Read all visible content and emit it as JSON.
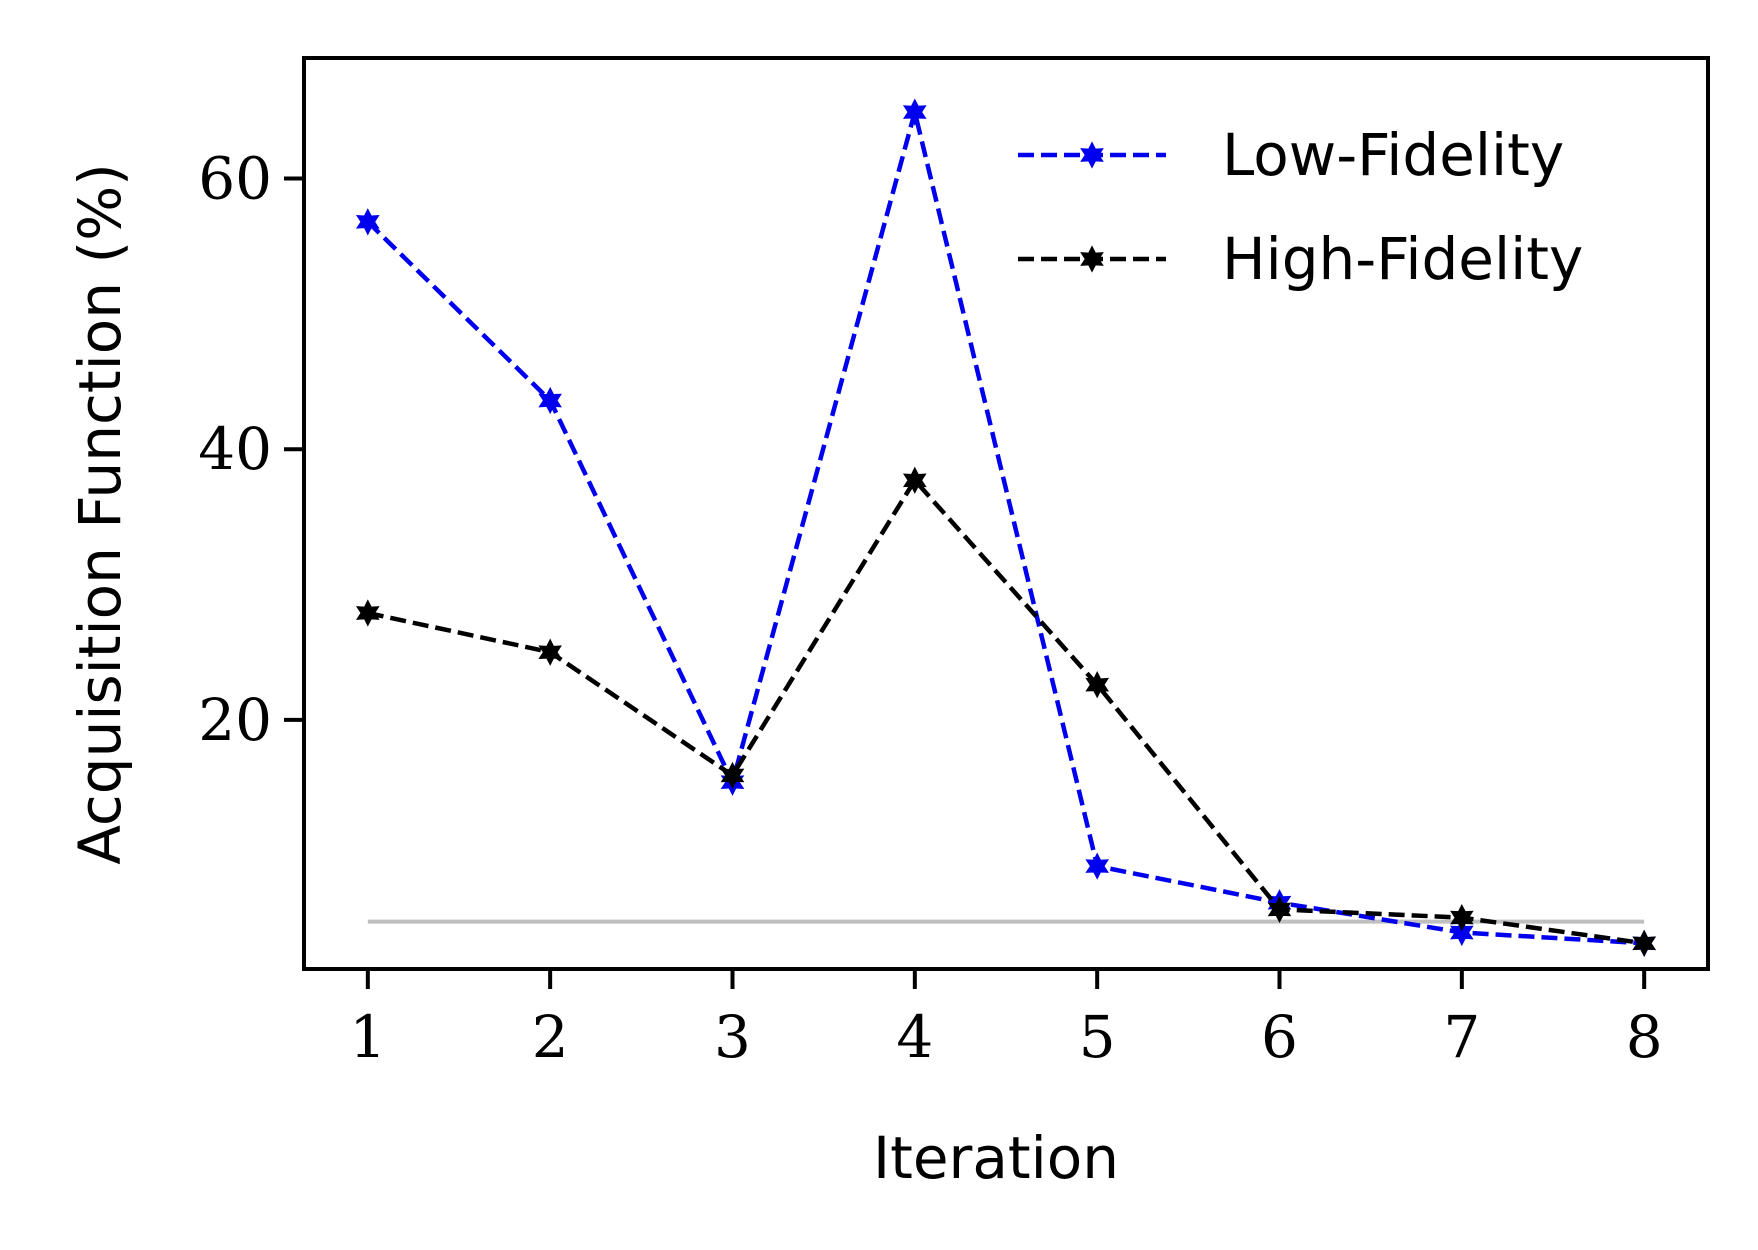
{
  "chart_data": {
    "type": "line",
    "title": "",
    "xlabel": "Iteration",
    "ylabel": "Acquisition Function (%)",
    "x": [
      1,
      2,
      3,
      4,
      5,
      6,
      7,
      8
    ],
    "xticks": [
      "1",
      "2",
      "3",
      "4",
      "5",
      "6",
      "7",
      "8"
    ],
    "yticks": [
      "20",
      "40",
      "60"
    ],
    "ytick_values": [
      20,
      40,
      60
    ],
    "xlim": [
      0.65,
      8.35
    ],
    "ylim": [
      1.6,
      68.9
    ],
    "grid": false,
    "legend_position": "top-right",
    "reference_line": {
      "y": 5.1,
      "color": "#bfbfbf"
    },
    "series": [
      {
        "name": "Low-Fidelity",
        "color": "#0000ee",
        "linestyle": "dashed",
        "marker": "star",
        "values": [
          56.8,
          43.6,
          15.4,
          64.9,
          9.2,
          6.5,
          4.3,
          3.5
        ]
      },
      {
        "name": "High-Fidelity",
        "color": "#000000",
        "linestyle": "dashed",
        "marker": "star",
        "values": [
          27.9,
          25.0,
          15.9,
          37.7,
          22.6,
          6.0,
          5.4,
          3.5
        ]
      }
    ]
  }
}
